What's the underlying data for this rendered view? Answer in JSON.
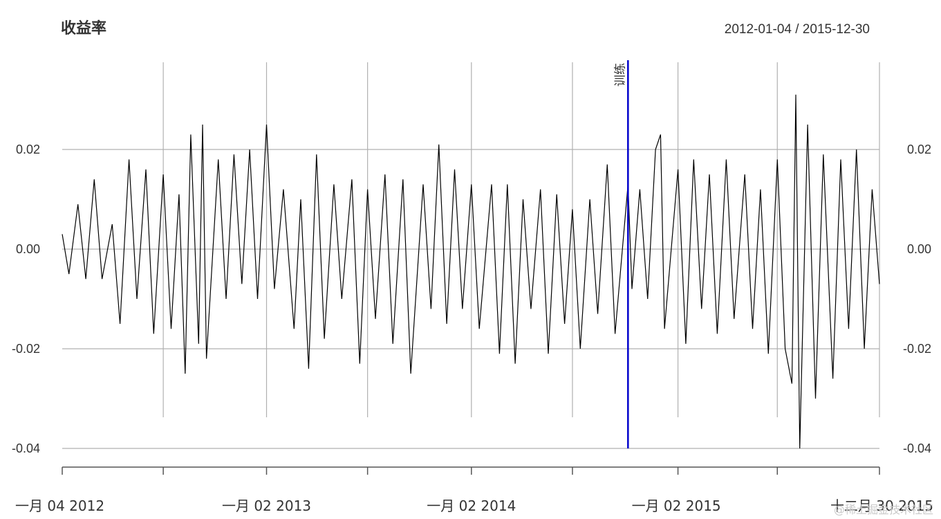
{
  "watermark": "@稀土掘金技术社区",
  "chart_data": {
    "type": "line",
    "title": "收益率",
    "date_range": "2012-01-04 / 2015-12-30",
    "x_range": [
      "2012-01-04",
      "2015-12-30"
    ],
    "ylim": [
      -0.04,
      0.03
    ],
    "y_ticks": [
      0.02,
      0.0,
      -0.02,
      -0.04
    ],
    "y_tick_labels": [
      "0.02",
      "0.00",
      "-0.02",
      "-0.04"
    ],
    "x_tick_labels": [
      {
        "date": "2012-01-04",
        "label": "一月 04 2012"
      },
      {
        "date": "2013-01-02",
        "label": "一月 02 2013"
      },
      {
        "date": "2014-01-02",
        "label": "一月 02 2014"
      },
      {
        "date": "2015-01-02",
        "label": "一月 02 2015"
      },
      {
        "date": "2015-12-30",
        "label": "十二月 30 2015"
      }
    ],
    "grid_dates": [
      "2012-07-02",
      "2013-01-02",
      "2013-07-01",
      "2014-01-02",
      "2014-07-01",
      "2015-01-05",
      "2015-07-01",
      "2015-12-30"
    ],
    "axis_tick_dates": [
      "2012-01-04",
      "2012-07-02",
      "2013-01-02",
      "2013-07-01",
      "2014-01-02",
      "2014-07-01",
      "2015-01-05",
      "2015-07-01",
      "2015-12-30"
    ],
    "event": {
      "date": "2014-10-08",
      "label": "训练",
      "color": "#0000cc"
    },
    "grid": true,
    "series": [
      {
        "color": "#000000",
        "points": [
          [
            "2012-01-04",
            0.003
          ],
          [
            "2012-01-16",
            -0.005
          ],
          [
            "2012-02-01",
            0.009
          ],
          [
            "2012-02-15",
            -0.006
          ],
          [
            "2012-03-01",
            0.014
          ],
          [
            "2012-03-15",
            -0.006
          ],
          [
            "2012-04-02",
            0.005
          ],
          [
            "2012-04-16",
            -0.015
          ],
          [
            "2012-05-02",
            0.018
          ],
          [
            "2012-05-16",
            -0.01
          ],
          [
            "2012-06-01",
            0.016
          ],
          [
            "2012-06-15",
            -0.017
          ],
          [
            "2012-07-02",
            0.015
          ],
          [
            "2012-07-16",
            -0.016
          ],
          [
            "2012-07-30",
            0.011
          ],
          [
            "2012-08-10",
            -0.025
          ],
          [
            "2012-08-20",
            0.023
          ],
          [
            "2012-09-03",
            -0.019
          ],
          [
            "2012-09-10",
            0.025
          ],
          [
            "2012-09-17",
            -0.022
          ],
          [
            "2012-10-08",
            0.018
          ],
          [
            "2012-10-22",
            -0.01
          ],
          [
            "2012-11-05",
            0.019
          ],
          [
            "2012-11-19",
            -0.007
          ],
          [
            "2012-12-03",
            0.02
          ],
          [
            "2012-12-17",
            -0.01
          ],
          [
            "2013-01-02",
            0.025
          ],
          [
            "2013-01-16",
            -0.008
          ],
          [
            "2013-02-01",
            0.012
          ],
          [
            "2013-02-20",
            -0.016
          ],
          [
            "2013-03-04",
            0.01
          ],
          [
            "2013-03-18",
            -0.024
          ],
          [
            "2013-04-01",
            0.019
          ],
          [
            "2013-04-15",
            -0.018
          ],
          [
            "2013-05-02",
            0.013
          ],
          [
            "2013-05-16",
            -0.01
          ],
          [
            "2013-06-03",
            0.014
          ],
          [
            "2013-06-17",
            -0.023
          ],
          [
            "2013-07-01",
            0.012
          ],
          [
            "2013-07-15",
            -0.014
          ],
          [
            "2013-08-01",
            0.015
          ],
          [
            "2013-08-15",
            -0.019
          ],
          [
            "2013-09-02",
            0.014
          ],
          [
            "2013-09-16",
            -0.025
          ],
          [
            "2013-10-08",
            0.013
          ],
          [
            "2013-10-22",
            -0.012
          ],
          [
            "2013-11-05",
            0.021
          ],
          [
            "2013-11-19",
            -0.015
          ],
          [
            "2013-12-03",
            0.016
          ],
          [
            "2013-12-17",
            -0.012
          ],
          [
            "2014-01-02",
            0.013
          ],
          [
            "2014-01-16",
            -0.016
          ],
          [
            "2014-02-07",
            0.013
          ],
          [
            "2014-02-21",
            -0.021
          ],
          [
            "2014-03-07",
            0.013
          ],
          [
            "2014-03-21",
            -0.023
          ],
          [
            "2014-04-04",
            0.01
          ],
          [
            "2014-04-18",
            -0.012
          ],
          [
            "2014-05-05",
            0.012
          ],
          [
            "2014-05-19",
            -0.021
          ],
          [
            "2014-06-03",
            0.011
          ],
          [
            "2014-06-17",
            -0.015
          ],
          [
            "2014-07-01",
            0.008
          ],
          [
            "2014-07-15",
            -0.02
          ],
          [
            "2014-08-01",
            0.01
          ],
          [
            "2014-08-15",
            -0.013
          ],
          [
            "2014-09-01",
            0.017
          ],
          [
            "2014-09-15",
            -0.017
          ],
          [
            "2014-10-08",
            0.013
          ],
          [
            "2014-10-15",
            -0.008
          ],
          [
            "2014-10-29",
            0.012
          ],
          [
            "2014-11-12",
            -0.01
          ],
          [
            "2014-11-26",
            0.02
          ],
          [
            "2014-12-05",
            0.023
          ],
          [
            "2014-12-12",
            -0.016
          ],
          [
            "2015-01-05",
            0.016
          ],
          [
            "2015-01-19",
            -0.019
          ],
          [
            "2015-02-02",
            0.018
          ],
          [
            "2015-02-16",
            -0.012
          ],
          [
            "2015-03-02",
            0.015
          ],
          [
            "2015-03-16",
            -0.017
          ],
          [
            "2015-04-01",
            0.018
          ],
          [
            "2015-04-15",
            -0.014
          ],
          [
            "2015-05-04",
            0.015
          ],
          [
            "2015-05-18",
            -0.016
          ],
          [
            "2015-06-01",
            0.012
          ],
          [
            "2015-06-15",
            -0.021
          ],
          [
            "2015-07-01",
            0.018
          ],
          [
            "2015-07-15",
            -0.02
          ],
          [
            "2015-07-27",
            -0.027
          ],
          [
            "2015-08-03",
            0.031
          ],
          [
            "2015-08-10",
            -0.04
          ],
          [
            "2015-08-24",
            0.025
          ],
          [
            "2015-09-07",
            -0.03
          ],
          [
            "2015-09-21",
            0.019
          ],
          [
            "2015-10-08",
            -0.026
          ],
          [
            "2015-10-22",
            0.018
          ],
          [
            "2015-11-05",
            -0.016
          ],
          [
            "2015-11-19",
            0.02
          ],
          [
            "2015-12-03",
            -0.02
          ],
          [
            "2015-12-17",
            0.012
          ],
          [
            "2015-12-30",
            -0.007
          ]
        ]
      }
    ]
  }
}
